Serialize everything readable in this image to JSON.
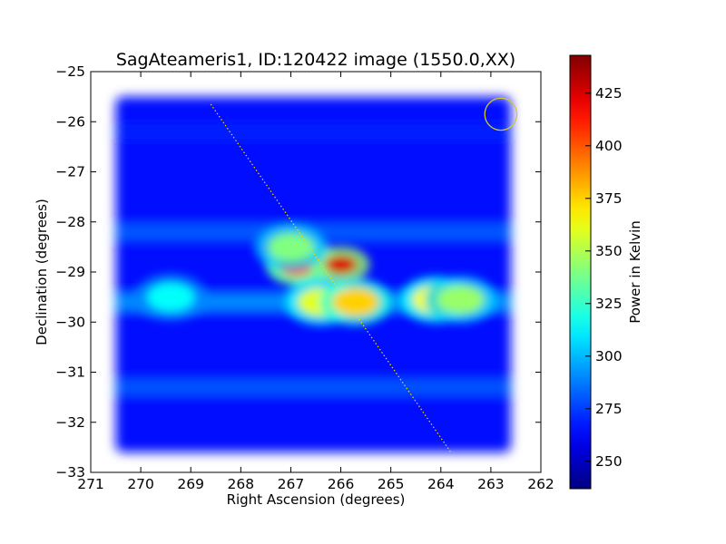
{
  "chart_data": {
    "type": "heatmap",
    "title": "SagAteameris1, ID:120422 image (1550.0,XX)",
    "xlabel": "Right Ascension (degrees)",
    "ylabel": "Declination (degrees)",
    "xlim": [
      271,
      262
    ],
    "ylim": [
      -33,
      -25
    ],
    "x_ticks": [
      271,
      270,
      269,
      268,
      267,
      266,
      265,
      264,
      263,
      262
    ],
    "x_tick_labels": [
      "271",
      "270",
      "269",
      "268",
      "267",
      "266",
      "265",
      "264",
      "263",
      "262"
    ],
    "y_ticks": [
      -25,
      -26,
      -27,
      -28,
      -29,
      -30,
      -31,
      -32,
      -33
    ],
    "y_tick_labels": [
      "−25",
      "−26",
      "−27",
      "−28",
      "−29",
      "−30",
      "−31",
      "−32",
      "−33"
    ],
    "colorbar": {
      "label": "Power in Kelvin",
      "range": [
        237,
        443
      ],
      "colormap": "jet",
      "ticks": [
        250,
        275,
        300,
        325,
        350,
        375,
        400,
        425
      ],
      "tick_labels": [
        "250",
        "275",
        "300",
        "325",
        "350",
        "375",
        "400",
        "425"
      ]
    },
    "map_extent": {
      "ra": [
        262.6,
        270.5
      ],
      "dec": [
        -32.6,
        -25.5
      ]
    },
    "background_kelvin": 265,
    "bands": [
      {
        "dec": -28.2,
        "kelvin": 283
      },
      {
        "dec": -29.6,
        "kelvin": 295
      },
      {
        "dec": -31.3,
        "kelvin": 282
      },
      {
        "dec": -26.2,
        "kelvin": 270
      }
    ],
    "hotspots": [
      {
        "ra": 266.8,
        "dec": -28.8,
        "kelvin": 372
      },
      {
        "ra": 266.0,
        "dec": -28.85,
        "kelvin": 425
      },
      {
        "ra": 266.9,
        "dec": -28.9,
        "kelvin": 405
      },
      {
        "ra": 266.4,
        "dec": -29.6,
        "kelvin": 360
      },
      {
        "ra": 265.7,
        "dec": -29.6,
        "kelvin": 375
      },
      {
        "ra": 264.1,
        "dec": -29.55,
        "kelvin": 365
      },
      {
        "ra": 263.6,
        "dec": -29.55,
        "kelvin": 345
      },
      {
        "ra": 269.4,
        "dec": -29.5,
        "kelvin": 315
      },
      {
        "ra": 267.0,
        "dec": -28.5,
        "kelvin": 340
      }
    ],
    "galactic_plane": {
      "from": {
        "ra": 268.6,
        "dec": -25.65
      },
      "to": {
        "ra": 263.8,
        "dec": -32.6
      },
      "color": "#ffd700"
    },
    "beam_circle": {
      "ra": 262.8,
      "dec": -25.85,
      "radius_deg": 0.32,
      "color": "#d4c832"
    },
    "grid": false
  }
}
